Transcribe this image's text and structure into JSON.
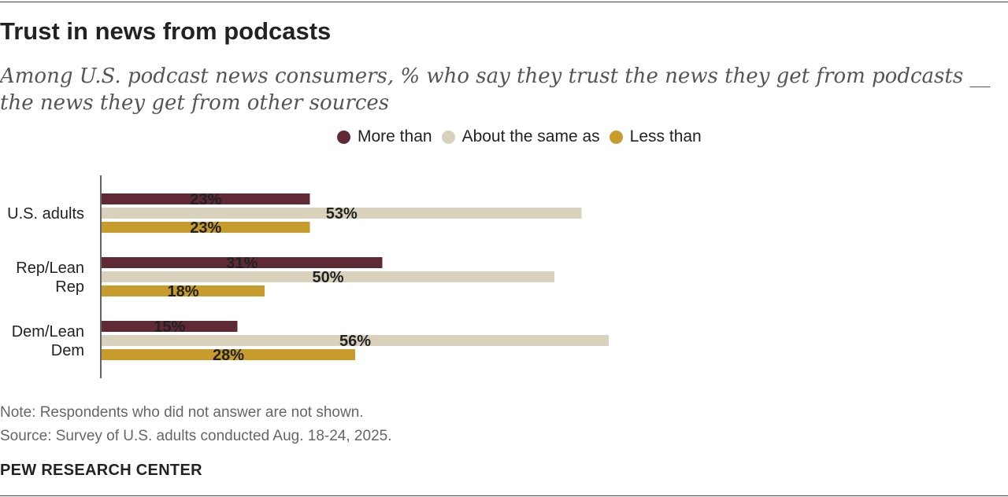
{
  "chart_data": {
    "type": "bar",
    "orientation": "horizontal",
    "title": "Trust in news from podcasts",
    "subtitle": "Among U.S. podcast news consumers, % who say they trust the news they get from podcasts __ the news they get from other sources",
    "categories": [
      {
        "lines": [
          "U.S. adults"
        ]
      },
      {
        "lines": [
          "Rep/Lean",
          "Rep"
        ]
      },
      {
        "lines": [
          "Dem/Lean",
          "Dem"
        ]
      }
    ],
    "series": [
      {
        "name": "More than",
        "color": "#5f2a36",
        "values": [
          23,
          31,
          15
        ],
        "labels": [
          "23%",
          "31%",
          "15%"
        ]
      },
      {
        "name": "About the same as",
        "color": "#d8d2bd",
        "values": [
          53,
          50,
          56
        ],
        "labels": [
          "53%",
          "50%",
          "56%"
        ]
      },
      {
        "name": "Less than",
        "color": "#c79b2c",
        "values": [
          23,
          18,
          28
        ],
        "labels": [
          "23%",
          "18%",
          "28%"
        ]
      }
    ],
    "xlim": [
      0,
      100
    ],
    "legend_position": "top-center",
    "grid": false
  },
  "legend": [
    {
      "label": "More than",
      "color": "#5f2a36"
    },
    {
      "label": "About the same as",
      "color": "#d8d2bd"
    },
    {
      "label": "Less than",
      "color": "#c79b2c"
    }
  ],
  "note": "Note: Respondents who did not answer are not shown.",
  "source": "Source: Survey of U.S. adults conducted Aug. 18-24, 2025.",
  "brand": "PEW RESEARCH CENTER"
}
